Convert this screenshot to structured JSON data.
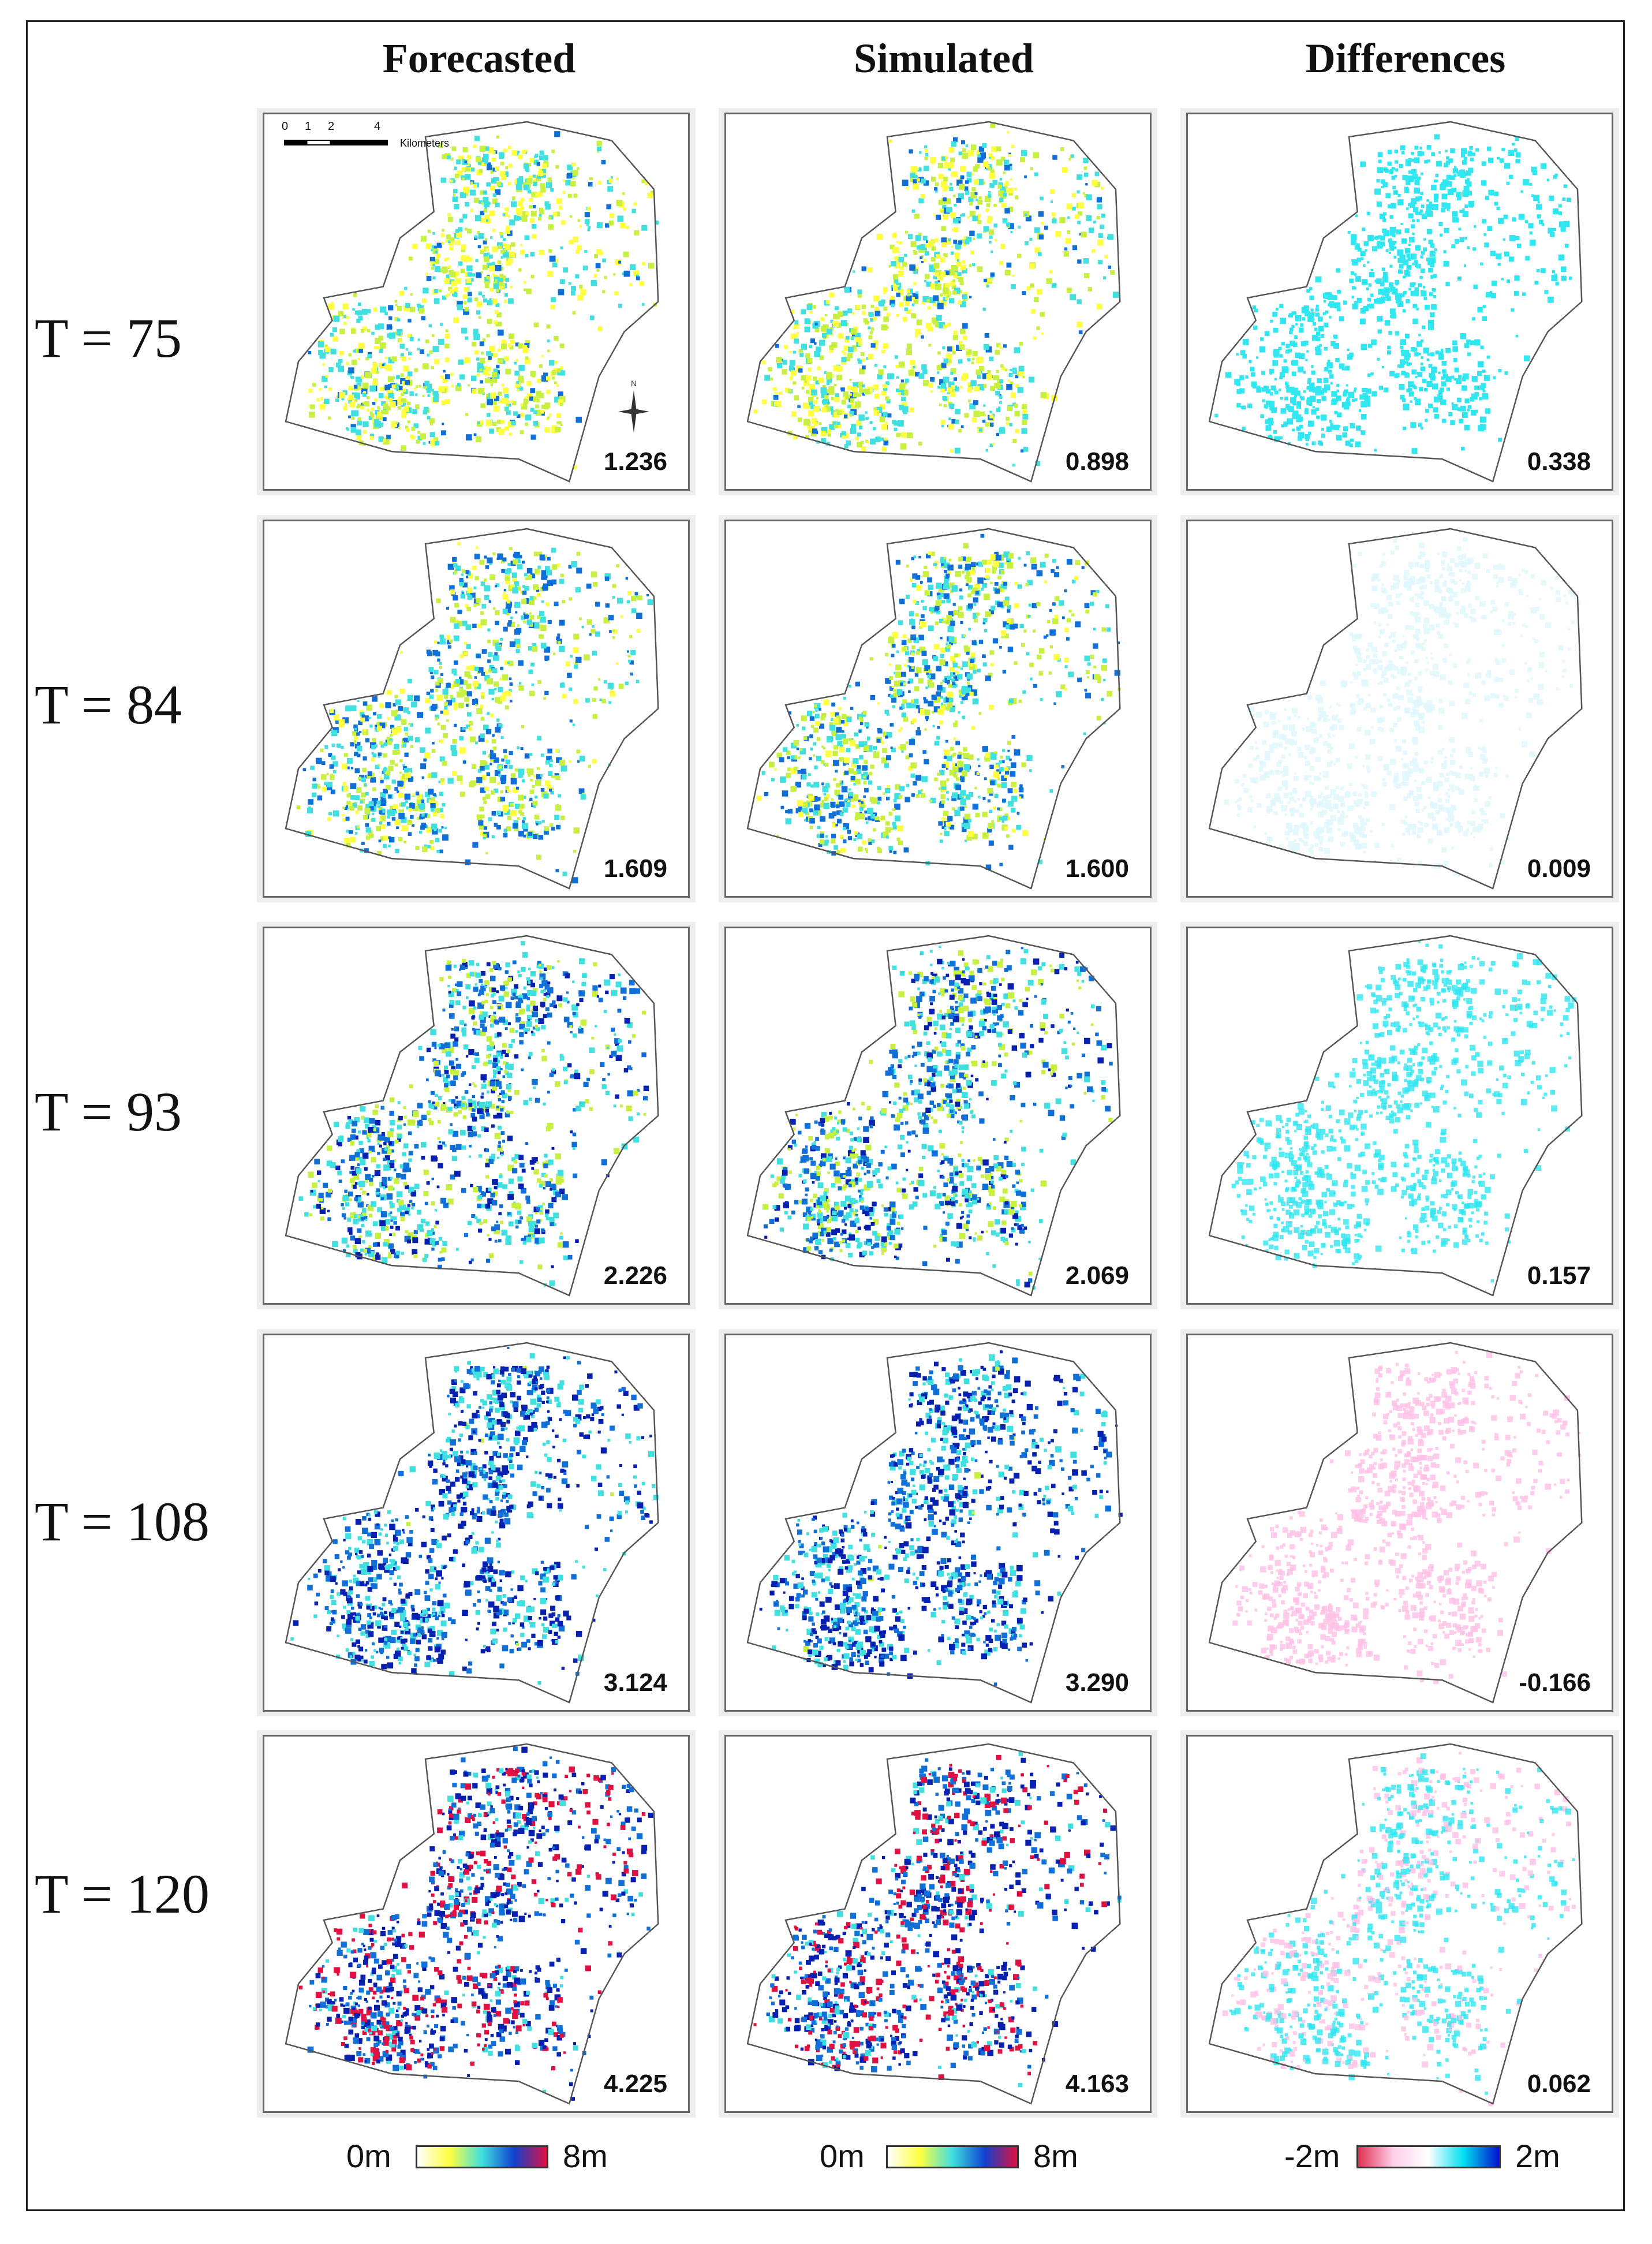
{
  "columns": [
    "Forecasted",
    "Simulated",
    "Differences"
  ],
  "rows": [
    {
      "label": "T = 75",
      "values": [
        "1.236",
        "0.898",
        "0.338"
      ]
    },
    {
      "label": "T = 84",
      "values": [
        "1.609",
        "1.600",
        "0.009"
      ]
    },
    {
      "label": "T = 93",
      "values": [
        "2.226",
        "2.069",
        "0.157"
      ]
    },
    {
      "label": "T = 108",
      "values": [
        "3.124",
        "3.290",
        "-0.166"
      ]
    },
    {
      "label": "T = 120",
      "values": [
        "4.225",
        "4.163",
        "0.062"
      ]
    }
  ],
  "scale_bar": {
    "ticks": [
      "0",
      "1",
      "2",
      "4"
    ],
    "unit": "Kilometers"
  },
  "north_arrow": {
    "label": "N",
    "icon": "north-arrow-icon"
  },
  "legends": [
    {
      "min": "0m",
      "max": "8m",
      "colors": [
        "#ffffff",
        "#ffff40",
        "#40e0e0",
        "#1040d0",
        "#e01040"
      ]
    },
    {
      "min": "0m",
      "max": "8m",
      "colors": [
        "#ffffff",
        "#ffff40",
        "#40e0e0",
        "#1040d0",
        "#e01040"
      ]
    },
    {
      "min": "-2m",
      "max": "2m",
      "colors": [
        "#e03050",
        "#ffd0ea",
        "#ffffff",
        "#00e0f0",
        "#0010d0"
      ]
    }
  ],
  "palette": {
    "depth": [
      "#ffff40",
      "#c8f040",
      "#40e0e0",
      "#1070d8",
      "#0820b0",
      "#e01040"
    ],
    "diff_pos": "#30e6f0",
    "diff_neg": "#ffc0e6"
  }
}
